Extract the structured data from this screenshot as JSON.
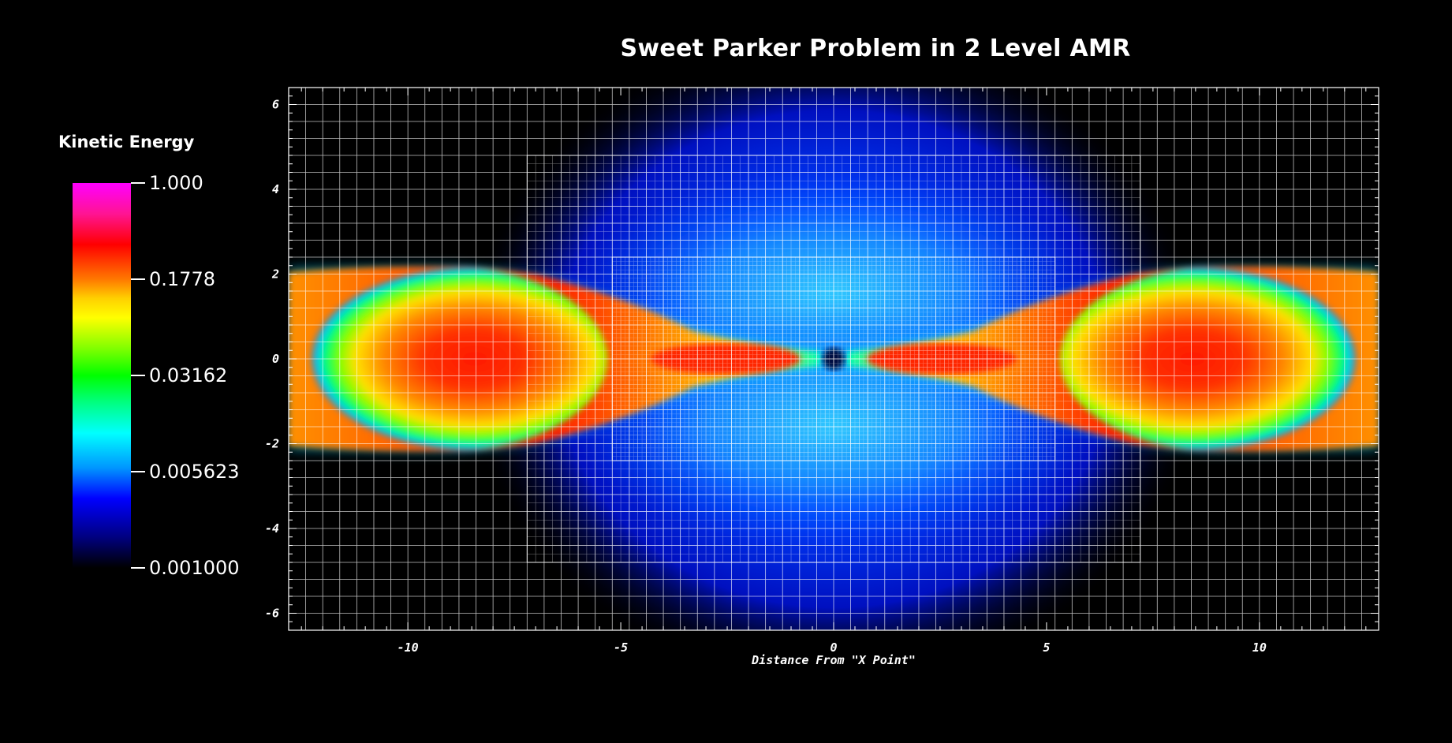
{
  "chart_data": {
    "type": "heatmap",
    "title": "Sweet Parker Problem in 2 Level AMR",
    "xlabel": "Distance From \"X Point\"",
    "ylabel": "",
    "xlim": [
      -12.8,
      12.8
    ],
    "ylim": [
      -6.4,
      6.4
    ],
    "x_ticks": [
      -10,
      -5,
      0,
      5,
      10
    ],
    "y_ticks": [
      -6,
      -4,
      -2,
      0,
      2,
      4,
      6
    ],
    "grid": true,
    "colorbar": {
      "title": "Kinetic Energy",
      "scale": "log",
      "range": [
        0.001,
        1.0
      ],
      "tick_labels": [
        "1.000",
        "0.1778",
        "0.03162",
        "0.005623",
        "0.001000"
      ],
      "tick_values": [
        1.0,
        0.1778,
        0.03162,
        0.005623,
        0.001
      ]
    },
    "mesh_levels": [
      {
        "level": 0,
        "x_range": [
          -12.8,
          12.8
        ],
        "y_range": [
          -6.4,
          6.4
        ],
        "cell_size": 0.4
      },
      {
        "level": 1,
        "x_range": [
          -7.2,
          7.2
        ],
        "y_range": [
          -4.8,
          4.8
        ],
        "cell_size": 0.2
      },
      {
        "level": 2,
        "x_range": [
          -5.2,
          5.2
        ],
        "y_range": [
          -2.4,
          2.4
        ],
        "cell_size": 0.1
      }
    ],
    "colors": {
      "max": "#ff00ff",
      "high": "#ff0000",
      "mid_high": "#ffff00",
      "mid": "#00ff00",
      "mid_low": "#00ffff",
      "low": "#0000ff",
      "min": "#000000"
    }
  }
}
